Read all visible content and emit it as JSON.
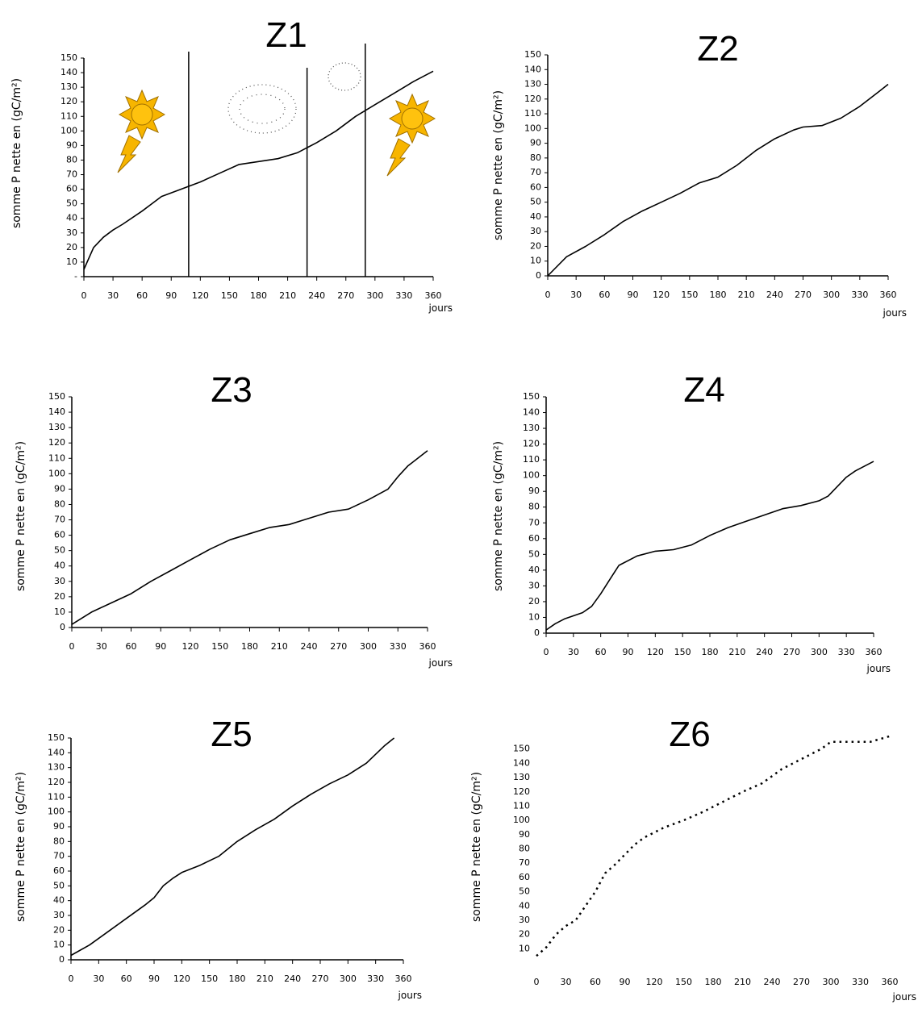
{
  "chart_data": [
    {
      "type": "line",
      "title": "Z1",
      "y_label": "somme P nette en (gC/m²)",
      "x_label": "jours",
      "x": [
        0,
        10,
        20,
        30,
        40,
        60,
        80,
        100,
        120,
        140,
        160,
        180,
        200,
        220,
        240,
        260,
        280,
        300,
        320,
        340,
        360
      ],
      "values": [
        5,
        20,
        27,
        32,
        36,
        45,
        55,
        60,
        65,
        71,
        77,
        79,
        81,
        85,
        92,
        100,
        110,
        118,
        126,
        134,
        141
      ],
      "color": "#000000",
      "line_style": "solid",
      "axis_lines": true,
      "vlines": [
        108,
        230,
        290
      ],
      "xlim": [
        0,
        360
      ],
      "ylim": [
        0,
        150
      ],
      "xticks": [
        0,
        30,
        60,
        90,
        120,
        150,
        180,
        210,
        240,
        270,
        300,
        330,
        360
      ],
      "yticks": [
        {
          "value": 0,
          "label": "-"
        },
        10,
        20,
        30,
        40,
        50,
        60,
        70,
        80,
        90,
        100,
        110,
        120,
        130,
        140,
        150
      ]
    },
    {
      "type": "line",
      "title": "Z2",
      "y_label": "somme P nette en (gC/m²)",
      "x_label": "jours",
      "x": [
        0,
        20,
        40,
        60,
        80,
        100,
        120,
        140,
        160,
        180,
        200,
        220,
        240,
        260,
        270,
        290,
        310,
        330,
        350,
        360
      ],
      "values": [
        0,
        13,
        20,
        28,
        37,
        44,
        50,
        56,
        63,
        67,
        75,
        85,
        93,
        99,
        101,
        102,
        107,
        115,
        125,
        130
      ],
      "color": "#000000",
      "line_style": "solid",
      "axis_lines": true,
      "xlim": [
        0,
        360
      ],
      "ylim": [
        0,
        150
      ],
      "xticks": [
        0,
        30,
        60,
        90,
        120,
        150,
        180,
        210,
        240,
        270,
        300,
        330,
        360
      ],
      "yticks": [
        0,
        10,
        20,
        30,
        40,
        50,
        60,
        70,
        80,
        90,
        100,
        110,
        120,
        130,
        140,
        150
      ]
    },
    {
      "type": "line",
      "title": "Z3",
      "y_label": "somme P nette en (gC/m²)",
      "x_label": "jours",
      "x": [
        0,
        20,
        40,
        60,
        80,
        100,
        120,
        140,
        160,
        180,
        200,
        220,
        240,
        260,
        280,
        300,
        320,
        330,
        340,
        360
      ],
      "values": [
        2,
        10,
        16,
        22,
        30,
        37,
        44,
        51,
        57,
        61,
        65,
        67,
        71,
        75,
        77,
        83,
        90,
        98,
        105,
        115
      ],
      "color": "#000000",
      "line_style": "solid",
      "axis_lines": true,
      "xlim": [
        0,
        360
      ],
      "ylim": [
        0,
        150
      ],
      "xticks": [
        0,
        30,
        60,
        90,
        120,
        150,
        180,
        210,
        240,
        270,
        300,
        330,
        360
      ],
      "yticks": [
        0,
        10,
        20,
        30,
        40,
        50,
        60,
        70,
        80,
        90,
        100,
        110,
        120,
        130,
        140,
        150
      ]
    },
    {
      "type": "line",
      "title": "Z4",
      "y_label": "somme P nette en (gC/m²)",
      "x_label": "jours",
      "x": [
        0,
        10,
        20,
        40,
        50,
        60,
        70,
        80,
        100,
        120,
        140,
        160,
        180,
        200,
        220,
        240,
        260,
        280,
        300,
        310,
        320,
        330,
        340,
        360
      ],
      "values": [
        2,
        6,
        9,
        13,
        17,
        25,
        34,
        43,
        49,
        52,
        53,
        56,
        62,
        67,
        71,
        75,
        79,
        81,
        84,
        87,
        93,
        99,
        103,
        109
      ],
      "color": "#000000",
      "line_style": "solid",
      "axis_lines": true,
      "xlim": [
        0,
        360
      ],
      "ylim": [
        0,
        150
      ],
      "xticks": [
        0,
        30,
        60,
        90,
        120,
        150,
        180,
        210,
        240,
        270,
        300,
        330,
        360
      ],
      "yticks": [
        0,
        10,
        20,
        30,
        40,
        50,
        60,
        70,
        80,
        90,
        100,
        110,
        120,
        130,
        140,
        150
      ]
    },
    {
      "type": "line",
      "title": "Z5",
      "y_label": "somme P nette en (gC/m²)",
      "x_label": "jours",
      "x": [
        0,
        20,
        40,
        60,
        80,
        90,
        100,
        110,
        120,
        140,
        160,
        180,
        200,
        220,
        240,
        260,
        280,
        300,
        320,
        340,
        350
      ],
      "values": [
        3,
        10,
        19,
        28,
        37,
        42,
        50,
        55,
        59,
        64,
        70,
        80,
        88,
        95,
        104,
        112,
        119,
        125,
        133,
        145,
        150
      ],
      "color": "#000000",
      "line_style": "solid",
      "axis_lines": true,
      "xlim": [
        0,
        360
      ],
      "ylim": [
        0,
        150
      ],
      "xticks": [
        0,
        30,
        60,
        90,
        120,
        150,
        180,
        210,
        240,
        270,
        300,
        330,
        360
      ],
      "yticks": [
        0,
        10,
        20,
        30,
        40,
        50,
        60,
        70,
        80,
        90,
        100,
        110,
        120,
        130,
        140,
        150
      ]
    },
    {
      "type": "line",
      "title": "Z6",
      "y_label": "somme P nette en (gC/m²)",
      "x_label": "jours",
      "x": [
        0,
        10,
        20,
        30,
        40,
        50,
        60,
        70,
        80,
        90,
        100,
        110,
        130,
        150,
        170,
        190,
        210,
        230,
        250,
        270,
        290,
        300,
        340,
        360
      ],
      "values": [
        5,
        11,
        20,
        26,
        30,
        40,
        50,
        63,
        69,
        76,
        83,
        88,
        95,
        100,
        106,
        113,
        120,
        126,
        136,
        143,
        150,
        155,
        155,
        159
      ],
      "color": "#000000",
      "line_style": "dotted",
      "axis_lines": false,
      "xlim": [
        0,
        360
      ],
      "ylim": [
        0,
        160
      ],
      "xticks": [
        0,
        30,
        60,
        90,
        120,
        150,
        180,
        210,
        240,
        270,
        300,
        330,
        360
      ],
      "yticks": [
        10,
        20,
        30,
        40,
        50,
        60,
        70,
        80,
        90,
        100,
        110,
        120,
        130,
        140,
        150
      ]
    }
  ]
}
